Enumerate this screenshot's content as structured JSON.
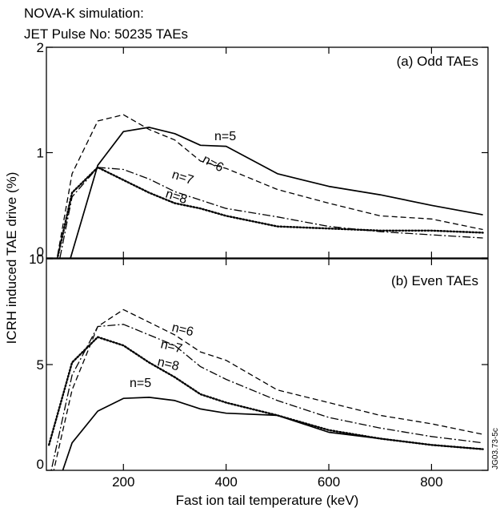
{
  "header": {
    "line1": "NOVA-K simulation:",
    "line2": "JET Pulse No: 50235 TAEs"
  },
  "ylabel": "ICRH induced TAE drive (%)",
  "xlabel": "Fast ion tail temperature (keV)",
  "side_note": "JG03.73-5c",
  "chart_data": [
    {
      "type": "line",
      "panel": "(a) Odd TAEs",
      "xlim": [
        50,
        910
      ],
      "ylim": [
        0,
        2
      ],
      "yticks": [
        0,
        1,
        2
      ],
      "xticks": [
        200,
        400,
        600,
        800
      ],
      "series": [
        {
          "name": "n=5",
          "style": "solid",
          "x": [
            55,
            100,
            150,
            200,
            250,
            300,
            350,
            400,
            500,
            600,
            700,
            800,
            900
          ],
          "y": [
            -0.7,
            0.05,
            0.88,
            1.2,
            1.24,
            1.18,
            1.07,
            1.06,
            0.8,
            0.68,
            0.6,
            0.5,
            0.41
          ]
        },
        {
          "name": "n=6",
          "style": "dashed",
          "x": [
            60,
            100,
            150,
            200,
            250,
            300,
            350,
            400,
            500,
            600,
            700,
            800,
            900
          ],
          "y": [
            -0.3,
            0.8,
            1.3,
            1.36,
            1.22,
            1.12,
            0.92,
            0.85,
            0.65,
            0.52,
            0.4,
            0.37,
            0.27
          ]
        },
        {
          "name": "n=7",
          "style": "dashdot",
          "x": [
            60,
            100,
            150,
            200,
            250,
            300,
            350,
            400,
            500,
            600,
            700,
            800,
            900
          ],
          "y": [
            -0.4,
            0.58,
            0.86,
            0.84,
            0.75,
            0.63,
            0.55,
            0.47,
            0.39,
            0.3,
            0.25,
            0.22,
            0.19
          ]
        },
        {
          "name": "n=8",
          "style": "dotted",
          "x": [
            60,
            100,
            150,
            200,
            250,
            300,
            350,
            400,
            500,
            600,
            700,
            800,
            900
          ],
          "y": [
            -0.25,
            0.62,
            0.86,
            0.74,
            0.62,
            0.52,
            0.47,
            0.4,
            0.3,
            0.28,
            0.26,
            0.26,
            0.24
          ]
        }
      ]
    },
    {
      "type": "line",
      "panel": "(b) Even TAEs",
      "xlim": [
        50,
        910
      ],
      "ylim": [
        0,
        10
      ],
      "yticks": [
        0,
        5,
        10
      ],
      "xticks": [
        200,
        400,
        600,
        800
      ],
      "series": [
        {
          "name": "n=5",
          "style": "solid",
          "x": [
            75,
            100,
            150,
            200,
            250,
            300,
            350,
            400,
            500,
            600,
            700,
            800,
            900
          ],
          "y": [
            -0.5,
            1.3,
            2.8,
            3.4,
            3.45,
            3.3,
            2.9,
            2.7,
            2.6,
            1.8,
            1.5,
            1.2,
            1.0
          ]
        },
        {
          "name": "n=6",
          "style": "dashed",
          "x": [
            55,
            100,
            150,
            200,
            250,
            300,
            350,
            400,
            500,
            600,
            700,
            800,
            900
          ],
          "y": [
            -1.0,
            3.8,
            6.8,
            7.6,
            7.0,
            6.4,
            5.6,
            5.2,
            3.8,
            3.2,
            2.6,
            2.2,
            1.7
          ]
        },
        {
          "name": "n=7",
          "style": "dashdot",
          "x": [
            55,
            100,
            150,
            200,
            250,
            300,
            350,
            400,
            500,
            600,
            700,
            800,
            900
          ],
          "y": [
            -0.5,
            4.5,
            6.8,
            6.9,
            6.4,
            5.9,
            4.9,
            4.3,
            3.3,
            2.5,
            2.0,
            1.6,
            1.3
          ]
        },
        {
          "name": "n=8",
          "style": "dotted",
          "x": [
            55,
            100,
            150,
            200,
            250,
            300,
            350,
            400,
            500,
            600,
            700,
            800,
            900
          ],
          "y": [
            1.2,
            5.1,
            6.3,
            5.9,
            5.1,
            4.4,
            3.6,
            3.2,
            2.6,
            1.9,
            1.5,
            1.2,
            1.0
          ]
        }
      ]
    }
  ]
}
